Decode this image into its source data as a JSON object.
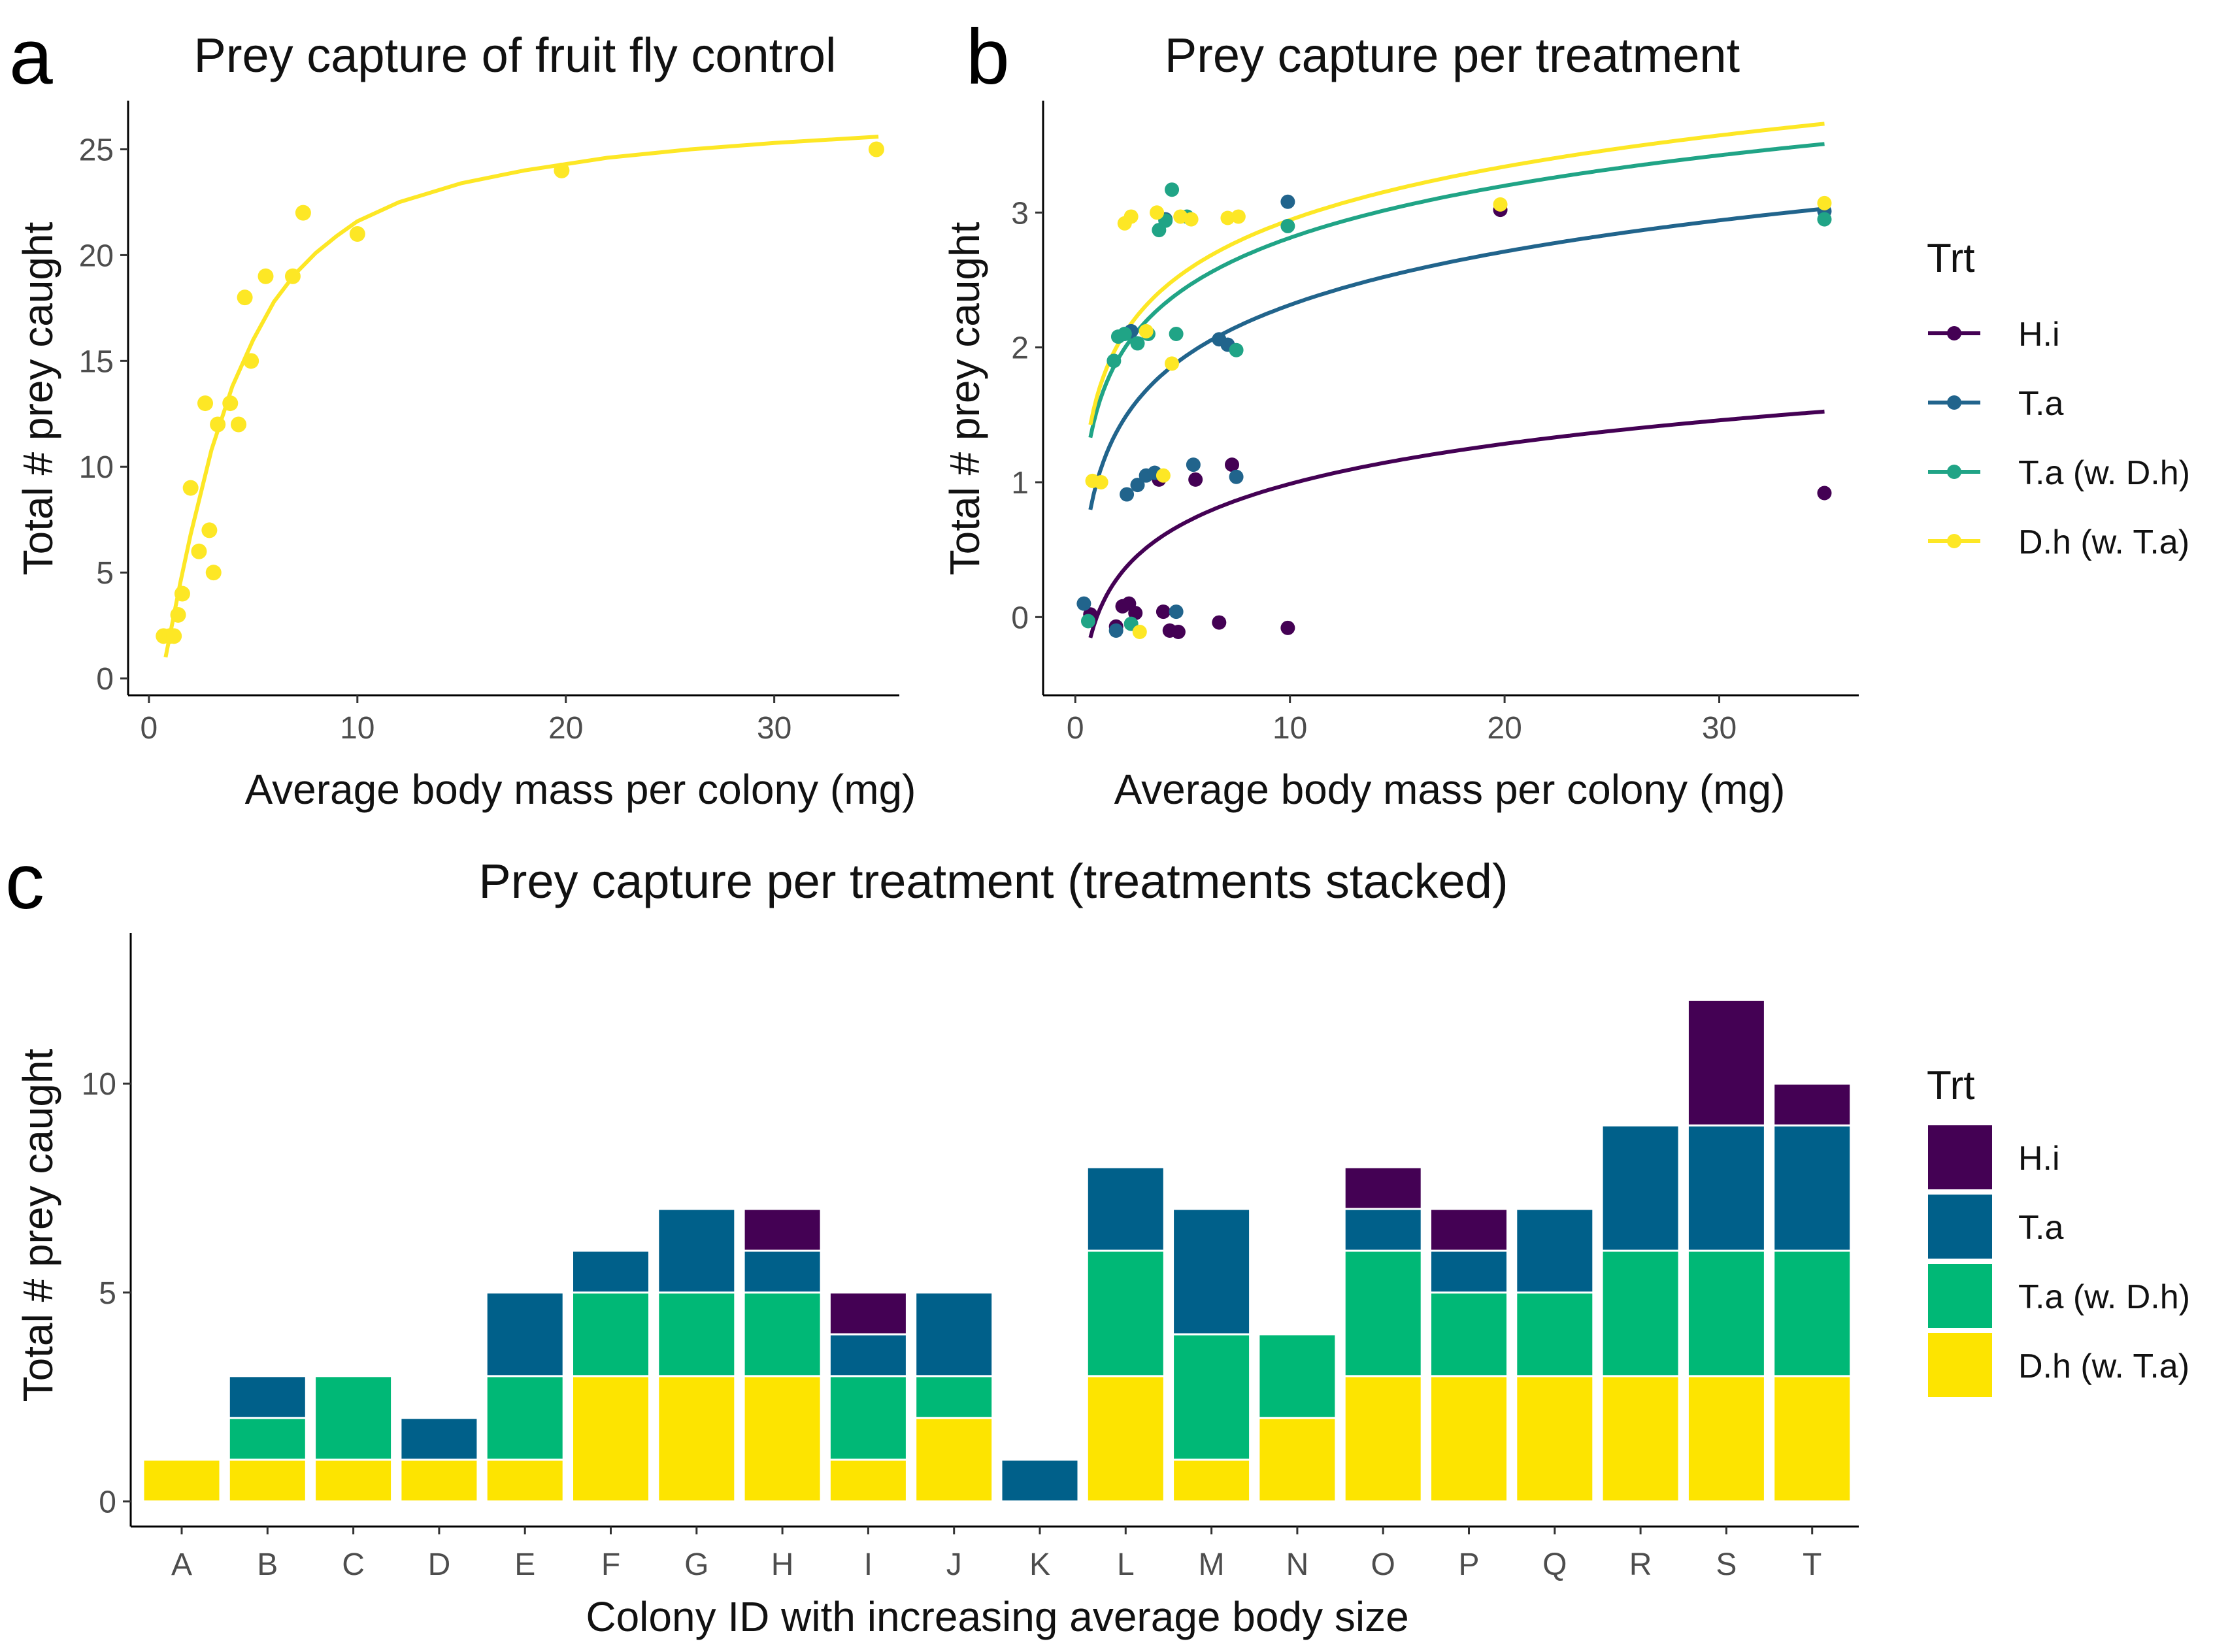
{
  "colors": {
    "H.i": "#440154",
    "T.a": "#21648c",
    "T.a (w. D.h)": "#20a486",
    "D.h (w. T.a)": "#fde725",
    "bar_H.i": "#440154",
    "bar_T.a": "#00608a",
    "bar_T.a (w. D.h)": "#00b876",
    "bar_D.h (w. T.a)": "#fde400"
  },
  "chart_data": [
    {
      "id": "a",
      "panel_label": "a",
      "type": "scatter",
      "title": "Prey capture of fruit fly control",
      "xlabel": "Average body mass per colony (mg)",
      "ylabel": "Total # prey caught",
      "xlim": [
        -1,
        36
      ],
      "ylim": [
        -0.8,
        27.3
      ],
      "xticks": [
        0,
        10,
        20,
        30
      ],
      "yticks": [
        0,
        5,
        10,
        15,
        20,
        25
      ],
      "grid": false,
      "series": [
        {
          "name": "Fruit fly control",
          "color": "#fde725",
          "points": [
            [
              0.7,
              2
            ],
            [
              1.0,
              2
            ],
            [
              1.2,
              2
            ],
            [
              1.4,
              3
            ],
            [
              1.6,
              4
            ],
            [
              2.0,
              9
            ],
            [
              2.4,
              6
            ],
            [
              2.7,
              13
            ],
            [
              2.9,
              7
            ],
            [
              3.1,
              5
            ],
            [
              3.3,
              12
            ],
            [
              3.9,
              13
            ],
            [
              4.3,
              12
            ],
            [
              4.6,
              18
            ],
            [
              4.9,
              15
            ],
            [
              5.6,
              19
            ],
            [
              6.9,
              19
            ],
            [
              7.4,
              22
            ],
            [
              10.0,
              21
            ],
            [
              19.8,
              24
            ],
            [
              34.9,
              25
            ]
          ],
          "fit": [
            [
              0.8,
              1
            ],
            [
              1.5,
              4.5
            ],
            [
              2,
              6.8
            ],
            [
              3,
              10.8
            ],
            [
              4,
              13.8
            ],
            [
              5,
              16
            ],
            [
              6,
              17.8
            ],
            [
              7,
              19.1
            ],
            [
              8,
              20.1
            ],
            [
              9,
              20.9
            ],
            [
              10,
              21.6
            ],
            [
              12,
              22.5
            ],
            [
              15,
              23.4
            ],
            [
              18,
              24
            ],
            [
              22,
              24.6
            ],
            [
              26,
              25
            ],
            [
              30,
              25.3
            ],
            [
              35,
              25.6
            ]
          ]
        }
      ]
    },
    {
      "id": "b",
      "panel_label": "b",
      "type": "scatter",
      "title": "Prey capture per treatment",
      "xlabel": "Average body mass per colony (mg)",
      "ylabel": "Total # prey caught",
      "xlim": [
        -1.5,
        36.5
      ],
      "ylim": [
        -0.58,
        3.83
      ],
      "xticks": [
        0,
        10,
        20,
        30
      ],
      "yticks": [
        0,
        1,
        2,
        3
      ],
      "grid": false,
      "legend_title": "Trt",
      "legend_position": "right",
      "series": [
        {
          "name": "H.i",
          "fit_coef": [
            0,
            0.429
          ],
          "points": [
            [
              0.7,
              0.02
            ],
            [
              1.9,
              -0.07
            ],
            [
              2.2,
              0.08
            ],
            [
              2.5,
              0.1
            ],
            [
              2.8,
              0.03
            ],
            [
              3.9,
              1.02
            ],
            [
              4.1,
              0.04
            ],
            [
              4.4,
              -0.1
            ],
            [
              4.8,
              -0.11
            ],
            [
              5.6,
              1.02
            ],
            [
              6.7,
              -0.04
            ],
            [
              7.3,
              1.13
            ],
            [
              9.9,
              -0.08
            ],
            [
              19.8,
              3.02
            ],
            [
              34.9,
              0.92
            ]
          ]
        },
        {
          "name": "T.a",
          "fit_coef": [
            1.0,
            0.571
          ],
          "points": [
            [
              0.4,
              0.1
            ],
            [
              1.9,
              -0.1
            ],
            [
              2.4,
              0.91
            ],
            [
              2.6,
              2.12
            ],
            [
              2.9,
              0.98
            ],
            [
              3.3,
              1.05
            ],
            [
              3.7,
              1.07
            ],
            [
              4.2,
              2.95
            ],
            [
              4.7,
              0.04
            ],
            [
              5.5,
              1.13
            ],
            [
              6.7,
              2.06
            ],
            [
              7.1,
              2.02
            ],
            [
              7.5,
              1.04
            ],
            [
              9.9,
              3.08
            ],
            [
              34.9,
              3.01
            ]
          ]
        },
        {
          "name": "T.a (w. D.h)",
          "fit_coef": [
            1.53,
            0.557
          ],
          "points": [
            [
              0.6,
              -0.03
            ],
            [
              1.8,
              1.9
            ],
            [
              2.0,
              2.08
            ],
            [
              2.3,
              2.1
            ],
            [
              2.6,
              -0.05
            ],
            [
              2.9,
              2.03
            ],
            [
              3.4,
              2.1
            ],
            [
              3.9,
              2.87
            ],
            [
              4.2,
              2.94
            ],
            [
              4.5,
              3.17
            ],
            [
              4.7,
              2.1
            ],
            [
              5.2,
              2.97
            ],
            [
              7.5,
              1.98
            ],
            [
              9.9,
              2.9
            ],
            [
              34.9,
              2.95
            ]
          ]
        },
        {
          "name": "D.h (w. T.a)",
          "fit_coef": [
            1.63,
            0.571
          ],
          "points": [
            [
              0.8,
              1.01
            ],
            [
              1.2,
              1.0
            ],
            [
              2.3,
              2.92
            ],
            [
              2.6,
              2.97
            ],
            [
              3.0,
              -0.11
            ],
            [
              3.3,
              2.12
            ],
            [
              3.8,
              3.0
            ],
            [
              4.1,
              1.05
            ],
            [
              4.5,
              1.88
            ],
            [
              4.9,
              2.97
            ],
            [
              5.4,
              2.95
            ],
            [
              7.1,
              2.96
            ],
            [
              7.6,
              2.97
            ],
            [
              19.8,
              3.06
            ],
            [
              34.9,
              3.07
            ]
          ]
        }
      ]
    },
    {
      "id": "c",
      "panel_label": "c",
      "type": "bar",
      "title": "Prey capture per treatment (treatments stacked)",
      "xlabel": "Colony ID with increasing average body size",
      "ylabel": "Total # prey caught",
      "ylim": [
        -0.6,
        13.6
      ],
      "yticks": [
        0,
        5,
        10
      ],
      "grid": false,
      "legend_title": "Trt",
      "legend_position": "right",
      "stacked": true,
      "categories": [
        "A",
        "B",
        "C",
        "D",
        "E",
        "F",
        "G",
        "H",
        "I",
        "J",
        "K",
        "L",
        "M",
        "N",
        "O",
        "P",
        "Q",
        "R",
        "S",
        "T"
      ],
      "series": [
        {
          "name": "D.h (w. T.a)",
          "values": [
            1,
            1,
            1,
            1,
            1,
            3,
            3,
            3,
            1,
            2,
            0,
            3,
            1,
            2,
            3,
            3,
            3,
            3,
            3,
            3
          ]
        },
        {
          "name": "T.a (w. D.h)",
          "values": [
            0,
            1,
            2,
            0,
            2,
            2,
            2,
            2,
            2,
            1,
            0,
            3,
            3,
            2,
            3,
            2,
            2,
            3,
            3,
            3
          ]
        },
        {
          "name": "T.a",
          "values": [
            0,
            1,
            0,
            1,
            2,
            1,
            2,
            1,
            1,
            2,
            1,
            2,
            3,
            0,
            1,
            1,
            2,
            3,
            3,
            3
          ]
        },
        {
          "name": "H.i",
          "values": [
            0,
            0,
            0,
            0,
            0,
            0,
            0,
            1,
            1,
            0,
            0,
            0,
            0,
            0,
            1,
            1,
            0,
            0,
            3,
            1
          ]
        }
      ]
    }
  ],
  "legend_order": [
    "H.i",
    "T.a",
    "T.a (w. D.h)",
    "D.h (w. T.a)"
  ]
}
